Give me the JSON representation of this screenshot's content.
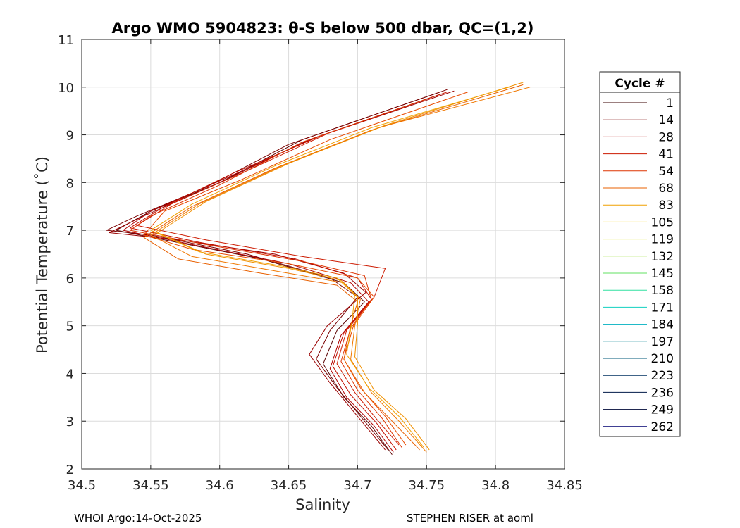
{
  "chart_data": {
    "type": "line",
    "title": "Argo WMO 5904823: θ-S below 500 dbar,  QC=(1,2)",
    "xlabel": "Salinity",
    "ylabel": "Potential Temperature (˚C)",
    "xlim": [
      34.5,
      34.85
    ],
    "ylim": [
      2,
      11
    ],
    "x_ticks": [
      "34.5",
      "34.55",
      "34.6",
      "34.65",
      "34.7",
      "34.75",
      "34.8",
      "34.85"
    ],
    "y_ticks": [
      "2",
      "3",
      "4",
      "5",
      "6",
      "7",
      "8",
      "9",
      "10",
      "11"
    ],
    "grid": true,
    "legend_placement": "right-outside",
    "legend": {
      "title": "Cycle #",
      "entries": [
        {
          "label": "1",
          "color": "#3a0000"
        },
        {
          "label": "14",
          "color": "#7a0000"
        },
        {
          "label": "28",
          "color": "#b00000"
        },
        {
          "label": "41",
          "color": "#cc1a00"
        },
        {
          "label": "54",
          "color": "#dd3300"
        },
        {
          "label": "68",
          "color": "#e86000"
        },
        {
          "label": "83",
          "color": "#f0a000"
        },
        {
          "label": "105",
          "color": "#f7d000"
        },
        {
          "label": "119",
          "color": "#d8e000"
        },
        {
          "label": "132",
          "color": "#a0e040"
        },
        {
          "label": "145",
          "color": "#60e060"
        },
        {
          "label": "158",
          "color": "#30e0a0"
        },
        {
          "label": "171",
          "color": "#10d0c0"
        },
        {
          "label": "184",
          "color": "#00b0c0"
        },
        {
          "label": "197",
          "color": "#008090"
        },
        {
          "label": "210",
          "color": "#005878"
        },
        {
          "label": "223",
          "color": "#003060"
        },
        {
          "label": "236",
          "color": "#001a48"
        },
        {
          "label": "249",
          "color": "#000a38"
        },
        {
          "label": "262",
          "color": "#000070"
        }
      ]
    },
    "series": [
      {
        "color": "#5a0000",
        "points": [
          [
            34.725,
            2.3
          ],
          [
            34.71,
            2.9
          ],
          [
            34.69,
            3.5
          ],
          [
            34.675,
            4.2
          ],
          [
            34.685,
            4.9
          ],
          [
            34.705,
            5.5
          ],
          [
            34.69,
            5.9
          ],
          [
            34.63,
            6.4
          ],
          [
            34.56,
            6.8
          ],
          [
            34.525,
            7.0
          ],
          [
            34.55,
            7.4
          ],
          [
            34.6,
            8.0
          ],
          [
            34.66,
            8.9
          ],
          [
            34.76,
            9.9
          ]
        ]
      },
      {
        "color": "#7a0000",
        "points": [
          [
            34.722,
            2.4
          ],
          [
            34.705,
            3.0
          ],
          [
            34.685,
            3.7
          ],
          [
            34.67,
            4.3
          ],
          [
            34.68,
            4.9
          ],
          [
            34.7,
            5.6
          ],
          [
            34.68,
            6.0
          ],
          [
            34.62,
            6.5
          ],
          [
            34.55,
            6.9
          ],
          [
            34.518,
            7.0
          ],
          [
            34.54,
            7.3
          ],
          [
            34.59,
            7.9
          ],
          [
            34.65,
            8.8
          ],
          [
            34.765,
            9.95
          ]
        ]
      },
      {
        "color": "#9a0000",
        "points": [
          [
            34.72,
            2.4
          ],
          [
            34.7,
            3.1
          ],
          [
            34.68,
            3.8
          ],
          [
            34.665,
            4.4
          ],
          [
            34.678,
            5.0
          ],
          [
            34.706,
            5.7
          ],
          [
            34.69,
            6.1
          ],
          [
            34.64,
            6.5
          ],
          [
            34.57,
            6.8
          ],
          [
            34.52,
            6.95
          ],
          [
            34.545,
            7.3
          ],
          [
            34.6,
            8.0
          ],
          [
            34.665,
            8.9
          ],
          [
            34.77,
            9.92
          ]
        ]
      },
      {
        "color": "#b00000",
        "points": [
          [
            34.726,
            2.35
          ],
          [
            34.712,
            2.9
          ],
          [
            34.692,
            3.5
          ],
          [
            34.68,
            4.1
          ],
          [
            34.688,
            4.8
          ],
          [
            34.708,
            5.5
          ],
          [
            34.695,
            5.9
          ],
          [
            34.65,
            6.3
          ],
          [
            34.58,
            6.7
          ],
          [
            34.53,
            7.0
          ],
          [
            34.55,
            7.4
          ],
          [
            34.605,
            8.1
          ],
          [
            34.67,
            8.95
          ],
          [
            34.755,
            9.8
          ]
        ]
      },
      {
        "color": "#c41000",
        "points": [
          [
            34.728,
            2.4
          ],
          [
            34.714,
            2.95
          ],
          [
            34.695,
            3.55
          ],
          [
            34.682,
            4.15
          ],
          [
            34.69,
            4.85
          ],
          [
            34.71,
            5.55
          ],
          [
            34.7,
            6.0
          ],
          [
            34.655,
            6.4
          ],
          [
            34.585,
            6.75
          ],
          [
            34.535,
            7.05
          ],
          [
            34.56,
            7.5
          ],
          [
            34.61,
            8.2
          ],
          [
            34.675,
            9.0
          ],
          [
            34.76,
            9.85
          ]
        ]
      },
      {
        "color": "#cc1a00",
        "points": [
          [
            34.73,
            2.5
          ],
          [
            34.715,
            3.0
          ],
          [
            34.698,
            3.6
          ],
          [
            34.685,
            4.2
          ],
          [
            34.692,
            4.9
          ],
          [
            34.712,
            5.6
          ],
          [
            34.72,
            6.2
          ],
          [
            34.66,
            6.45
          ],
          [
            34.59,
            6.8
          ],
          [
            34.54,
            7.1
          ],
          [
            34.565,
            7.55
          ],
          [
            34.62,
            8.25
          ],
          [
            34.68,
            9.05
          ],
          [
            34.765,
            9.9
          ]
        ]
      },
      {
        "color": "#dd3300",
        "points": [
          [
            34.732,
            2.45
          ],
          [
            34.718,
            3.05
          ],
          [
            34.7,
            3.65
          ],
          [
            34.688,
            4.25
          ],
          [
            34.695,
            4.95
          ],
          [
            34.71,
            5.55
          ],
          [
            34.705,
            6.05
          ],
          [
            34.66,
            6.35
          ],
          [
            34.59,
            6.7
          ],
          [
            34.535,
            7.0
          ],
          [
            34.55,
            7.3
          ],
          [
            34.6,
            7.95
          ],
          [
            34.66,
            8.85
          ],
          [
            34.75,
            9.75
          ]
        ]
      },
      {
        "color": "#e84a00",
        "points": [
          [
            34.735,
            2.5
          ],
          [
            34.72,
            3.1
          ],
          [
            34.702,
            3.7
          ],
          [
            34.69,
            4.3
          ],
          [
            34.697,
            5.0
          ],
          [
            34.712,
            5.6
          ],
          [
            34.7,
            6.0
          ],
          [
            34.65,
            6.3
          ],
          [
            34.58,
            6.6
          ],
          [
            34.545,
            6.9
          ],
          [
            34.56,
            7.4
          ],
          [
            34.615,
            8.05
          ],
          [
            34.68,
            8.9
          ],
          [
            34.78,
            9.9
          ]
        ]
      },
      {
        "color": "#e86000",
        "points": [
          [
            34.745,
            2.4
          ],
          [
            34.725,
            3.0
          ],
          [
            34.705,
            3.6
          ],
          [
            34.69,
            4.3
          ],
          [
            34.695,
            5.0
          ],
          [
            34.7,
            5.5
          ],
          [
            34.685,
            5.85
          ],
          [
            34.63,
            6.1
          ],
          [
            34.57,
            6.4
          ],
          [
            34.545,
            6.85
          ],
          [
            34.58,
            7.5
          ],
          [
            34.64,
            8.3
          ],
          [
            34.71,
            9.1
          ],
          [
            34.82,
            10.05
          ]
        ]
      },
      {
        "color": "#f07800",
        "points": [
          [
            34.75,
            2.35
          ],
          [
            34.73,
            3.0
          ],
          [
            34.71,
            3.6
          ],
          [
            34.695,
            4.3
          ],
          [
            34.698,
            5.0
          ],
          [
            34.702,
            5.55
          ],
          [
            34.69,
            5.9
          ],
          [
            34.64,
            6.15
          ],
          [
            34.58,
            6.45
          ],
          [
            34.55,
            6.9
          ],
          [
            34.585,
            7.55
          ],
          [
            34.645,
            8.35
          ],
          [
            34.715,
            9.15
          ],
          [
            34.825,
            10.0
          ]
        ]
      },
      {
        "color": "#f09000",
        "points": [
          [
            34.752,
            2.4
          ],
          [
            34.735,
            3.05
          ],
          [
            34.712,
            3.65
          ],
          [
            34.698,
            4.35
          ],
          [
            34.7,
            5.05
          ],
          [
            34.7,
            5.6
          ],
          [
            34.688,
            5.95
          ],
          [
            34.65,
            6.2
          ],
          [
            34.59,
            6.5
          ],
          [
            34.555,
            6.95
          ],
          [
            34.59,
            7.6
          ],
          [
            34.65,
            8.4
          ],
          [
            34.72,
            9.2
          ],
          [
            34.82,
            10.1
          ]
        ]
      },
      {
        "color": "#f0a000",
        "points": [
          [
            34.748,
            2.45
          ],
          [
            34.73,
            3.1
          ],
          [
            34.708,
            3.7
          ],
          [
            34.692,
            4.4
          ],
          [
            34.696,
            5.1
          ],
          [
            34.698,
            5.65
          ],
          [
            34.685,
            6.0
          ],
          [
            34.645,
            6.25
          ],
          [
            34.585,
            6.55
          ],
          [
            34.55,
            7.0
          ],
          [
            34.58,
            7.55
          ],
          [
            34.64,
            8.35
          ],
          [
            34.71,
            9.15
          ],
          [
            34.81,
            10.0
          ]
        ]
      }
    ]
  },
  "footer": {
    "left": "WHOI Argo:14-Oct-2025",
    "right": "STEPHEN RISER at aoml"
  }
}
